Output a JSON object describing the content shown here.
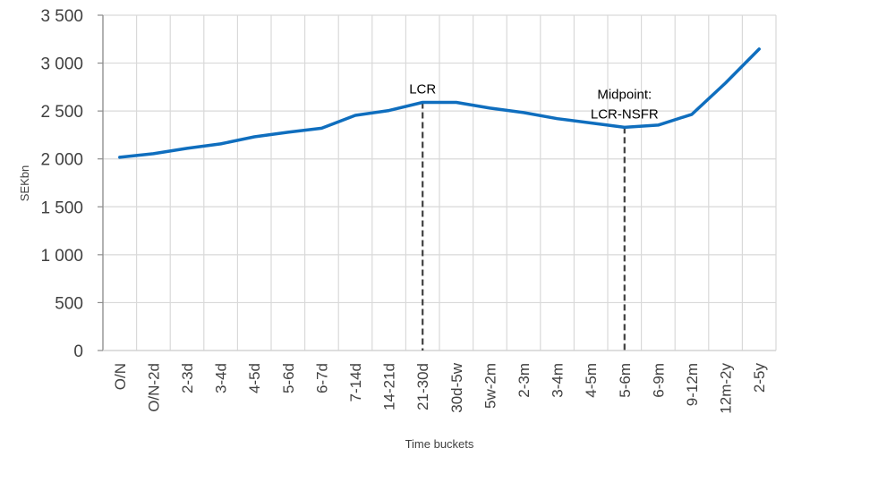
{
  "chart_data": {
    "type": "line",
    "title": "",
    "xlabel": "Time buckets",
    "ylabel": "SEKbn",
    "ylim": [
      0,
      3500
    ],
    "yticks": [
      0,
      500,
      1000,
      1500,
      2000,
      2500,
      3000,
      3500
    ],
    "ytick_labels": [
      "0",
      "500",
      "1 000",
      "1 500",
      "2 000",
      "2 500",
      "3 000",
      "3 500"
    ],
    "grid": true,
    "legend": null,
    "categories": [
      "O/N",
      "O/N-2d",
      "2-3d",
      "3-4d",
      "4-5d",
      "5-6d",
      "6-7d",
      "7-14d",
      "14-21d",
      "21-30d",
      "30d-5w",
      "5w-2m",
      "2-3m",
      "3-4m",
      "4-5m",
      "5-6m",
      "6-9m",
      "9-12m",
      "12m-2y",
      "2-5y"
    ],
    "series": [
      {
        "name": "SEKbn",
        "color": "#0F6EBE",
        "values": [
          2017,
          2054,
          2110,
          2157,
          2231,
          2278,
          2320,
          2455,
          2505,
          2590,
          2590,
          2530,
          2484,
          2420,
          2375,
          2330,
          2353,
          2465,
          2792,
          3146
        ]
      }
    ],
    "annotations": [
      {
        "category": "21-30d",
        "lines": [
          "LCR"
        ],
        "style": "dashed-vertical-drop"
      },
      {
        "category": "5-6m",
        "lines": [
          "Midpoint:",
          "LCR-NSFR"
        ],
        "style": "dashed-vertical-drop"
      }
    ]
  }
}
